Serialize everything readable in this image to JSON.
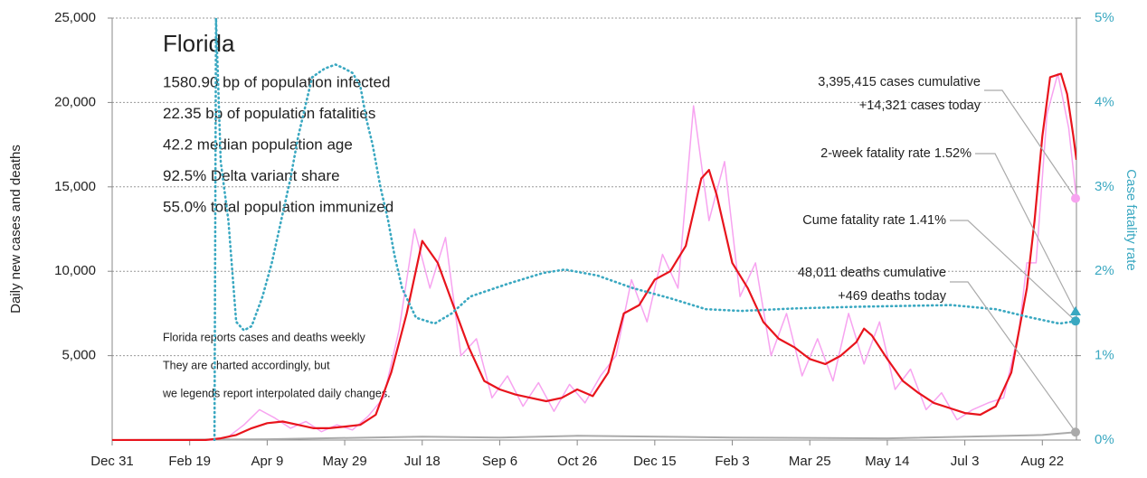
{
  "chart_data": {
    "type": "line",
    "info": {
      "title": "Florida",
      "lines": [
        "1580.90 bp of population infected",
        "22.35 bp of population fatalities",
        "42.2 median population age",
        "92.5% Delta variant share",
        "55.0% total population immunized"
      ]
    },
    "notes": [
      "Florida reports cases and deaths weekly",
      "They are charted accordingly, but",
      "we legends report interpolated daily changes."
    ],
    "ylabel": "Daily new cases and deaths",
    "y2label": "Case fatality rate",
    "xlim": [
      0,
      622
    ],
    "xticks": [
      {
        "value": 0,
        "label": "Dec 31"
      },
      {
        "value": 50,
        "label": "Feb 19"
      },
      {
        "value": 100,
        "label": "Apr 9"
      },
      {
        "value": 150,
        "label": "May 29"
      },
      {
        "value": 200,
        "label": "Jul 18"
      },
      {
        "value": 250,
        "label": "Sep 6"
      },
      {
        "value": 300,
        "label": "Oct 26"
      },
      {
        "value": 350,
        "label": "Dec 15"
      },
      {
        "value": 400,
        "label": "Feb 3"
      },
      {
        "value": 450,
        "label": "Mar 25"
      },
      {
        "value": 500,
        "label": "May 14"
      },
      {
        "value": 550,
        "label": "Jul 3"
      },
      {
        "value": 600,
        "label": "Aug 22"
      }
    ],
    "ylim": [
      0,
      25000
    ],
    "yticks": [
      {
        "value": 5000,
        "label": "5,000"
      },
      {
        "value": 10000,
        "label": "10,000"
      },
      {
        "value": 15000,
        "label": "15,000"
      },
      {
        "value": 20000,
        "label": "20,000"
      },
      {
        "value": 25000,
        "label": "25,000"
      }
    ],
    "y2lim": [
      0,
      5
    ],
    "y2ticks": [
      {
        "value": 0,
        "label": "0%"
      },
      {
        "value": 1,
        "label": "1%"
      },
      {
        "value": 2,
        "label": "2%"
      },
      {
        "value": 3,
        "label": "3%"
      },
      {
        "value": 4,
        "label": "4%"
      },
      {
        "value": 5,
        "label": "5%"
      }
    ],
    "grid": true,
    "series": [
      {
        "color": "#f7a3f0",
        "width": 1.5,
        "x": [
          5,
          65,
          75,
          85,
          95,
          105,
          115,
          125,
          135,
          145,
          155,
          165,
          175,
          185,
          195,
          205,
          215,
          225,
          235,
          245,
          255,
          265,
          275,
          285,
          295,
          305,
          315,
          325,
          335,
          345,
          355,
          365,
          375,
          385,
          395,
          405,
          415,
          425,
          435,
          445,
          455,
          465,
          475,
          485,
          495,
          505,
          515,
          525,
          535,
          545,
          555,
          565,
          575,
          585,
          590,
          596,
          603,
          610,
          617,
          622
        ],
        "values": [
          0,
          0,
          200,
          900,
          1800,
          1300,
          700,
          1100,
          500,
          900,
          600,
          1400,
          2500,
          6500,
          12500,
          9000,
          12000,
          5000,
          6000,
          2500,
          3800,
          2000,
          3400,
          1700,
          3300,
          2200,
          3800,
          5000,
          9500,
          7000,
          11000,
          9000,
          19800,
          13000,
          16500,
          8500,
          10500,
          5000,
          7500,
          3800,
          6000,
          3500,
          7500,
          4500,
          7000,
          3000,
          4200,
          1800,
          2800,
          1200,
          1800,
          2200,
          2500,
          6500,
          10500,
          10500,
          19300,
          21700,
          18500,
          14300
        ]
      },
      {
        "color": "#aaaaaa",
        "width": 2,
        "x": [
          0,
          100,
          200,
          250,
          300,
          400,
          500,
          600,
          622
        ],
        "values": [
          0,
          50,
          200,
          150,
          250,
          150,
          100,
          300,
          469
        ]
      },
      {
        "color": "#e8141c",
        "width": 2.2,
        "x": [
          0,
          60,
          70,
          80,
          90,
          100,
          110,
          120,
          130,
          140,
          150,
          160,
          170,
          180,
          190,
          200,
          210,
          220,
          230,
          240,
          250,
          260,
          270,
          280,
          290,
          300,
          310,
          320,
          330,
          340,
          350,
          360,
          370,
          380,
          385,
          390,
          400,
          410,
          420,
          430,
          440,
          450,
          460,
          470,
          480,
          485,
          490,
          500,
          510,
          520,
          530,
          540,
          550,
          560,
          570,
          580,
          590,
          595,
          600,
          605,
          612,
          616,
          620,
          622
        ],
        "values": [
          0,
          0,
          100,
          300,
          700,
          1000,
          1100,
          900,
          700,
          700,
          800,
          900,
          1500,
          4000,
          7500,
          11800,
          10500,
          8000,
          5500,
          3500,
          3000,
          2700,
          2500,
          2300,
          2500,
          3000,
          2600,
          4000,
          7500,
          8000,
          9500,
          10000,
          11500,
          15500,
          16000,
          14500,
          10500,
          9000,
          7000,
          6000,
          5500,
          4800,
          4500,
          5000,
          5800,
          6600,
          6200,
          4800,
          3500,
          2800,
          2200,
          1900,
          1600,
          1500,
          2000,
          4000,
          9000,
          13000,
          18000,
          21500,
          21700,
          20500,
          18000,
          16600
        ]
      },
      {
        "color": "#3aa8c1",
        "width": 2.6,
        "dash": true,
        "axis": "y2",
        "x": [
          66,
          67,
          70,
          75,
          80,
          85,
          90,
          97,
          103,
          109,
          115,
          120,
          129,
          137,
          144,
          150,
          155,
          160,
          164,
          168,
          173,
          178,
          182,
          187,
          196,
          208,
          219,
          231,
          255,
          278,
          292,
          313,
          336,
          360,
          383,
          406,
          441,
          482,
          541,
          570,
          593,
          611,
          622
        ],
        "values": [
          0,
          5,
          3.3,
          2.6,
          1.4,
          1.3,
          1.35,
          1.7,
          2.1,
          2.6,
          3.1,
          3.6,
          4.3,
          4.4,
          4.45,
          4.4,
          4.35,
          4.2,
          3.8,
          3.5,
          3.0,
          2.6,
          2.2,
          1.8,
          1.45,
          1.38,
          1.5,
          1.7,
          1.85,
          1.98,
          2.02,
          1.95,
          1.8,
          1.68,
          1.55,
          1.53,
          1.56,
          1.58,
          1.6,
          1.55,
          1.45,
          1.38,
          1.41
        ]
      }
    ],
    "annotations": [
      {
        "lines": [
          "3,395,415 cases cumulative",
          "+14,321 cases today"
        ],
        "value": 14321,
        "axis": "y",
        "marker": "circle",
        "color": "#f7a3f0"
      },
      {
        "lines": [
          "2-week fatality rate 1.52%"
        ],
        "value": 1.52,
        "axis": "y2",
        "marker": "triangle",
        "color": "#3aa8c1"
      },
      {
        "lines": [
          "Cume fatality rate 1.41%"
        ],
        "value": 1.41,
        "axis": "y2",
        "marker": "circle",
        "color": "#3aa8c1"
      },
      {
        "lines": [
          "48,011 deaths cumulative",
          "+469 deaths today"
        ],
        "value": 469,
        "axis": "y",
        "marker": "circle",
        "color": "#aaaaaa"
      }
    ]
  }
}
